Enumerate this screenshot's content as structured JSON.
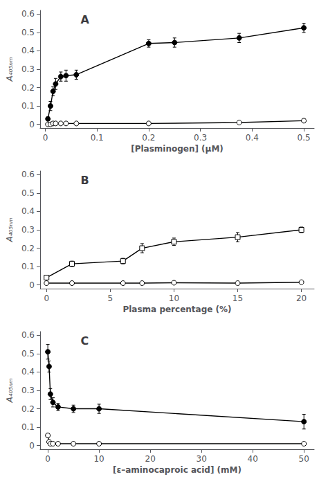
{
  "chart_data": [
    {
      "type": "line",
      "title": "A",
      "xlabel": "[Plasminogen] (μM)",
      "ylabel": "A₄₀₅ₙₘ",
      "xlim": [
        -0.01,
        0.52
      ],
      "ylim": [
        -0.02,
        0.62
      ],
      "xticks": [
        0,
        0.1,
        0.2,
        0.3,
        0.4,
        0.5
      ],
      "yticks": [
        0,
        0.1,
        0.2,
        0.3,
        0.4,
        0.5,
        0.6
      ],
      "grid": false,
      "series": [
        {
          "marker": "filled_circle",
          "color": "#000000",
          "x": [
            0.005,
            0.01,
            0.015,
            0.02,
            0.03,
            0.04,
            0.06,
            0.2,
            0.25,
            0.375,
            0.5
          ],
          "values": [
            0.03,
            0.1,
            0.18,
            0.22,
            0.26,
            0.265,
            0.27,
            0.44,
            0.445,
            0.47,
            0.525
          ],
          "yerr": [
            0.01,
            0.025,
            0.025,
            0.03,
            0.025,
            0.03,
            0.025,
            0.02,
            0.025,
            0.025,
            0.025
          ]
        },
        {
          "marker": "open_circle",
          "color": "#000000",
          "x": [
            0.005,
            0.01,
            0.015,
            0.02,
            0.03,
            0.04,
            0.06,
            0.2,
            0.375,
            0.5
          ],
          "values": [
            0.0,
            0.0,
            0.005,
            0.005,
            0.005,
            0.005,
            0.005,
            0.005,
            0.01,
            0.02
          ],
          "yerr": [
            0.005,
            0.005,
            0.005,
            0.005,
            0.005,
            0.005,
            0.005,
            0.005,
            0.005,
            0.01
          ]
        }
      ]
    },
    {
      "type": "line",
      "title": "B",
      "xlabel": "Plasma percentage (%)",
      "ylabel": "A₄₀₅ₙₘ",
      "xlim": [
        -0.5,
        21
      ],
      "ylim": [
        -0.02,
        0.62
      ],
      "xticks": [
        0,
        5,
        10,
        15,
        20
      ],
      "yticks": [
        0,
        0.1,
        0.2,
        0.3,
        0.4,
        0.5,
        0.6
      ],
      "grid": false,
      "series": [
        {
          "marker": "open_square",
          "color": "#000000",
          "x": [
            0.0,
            2.0,
            6.0,
            7.5,
            10.0,
            15.0,
            20.0
          ],
          "values": [
            0.04,
            0.115,
            0.13,
            0.2,
            0.235,
            0.26,
            0.3
          ],
          "yerr": [
            0.01,
            0.015,
            0.015,
            0.025,
            0.02,
            0.025,
            0.015
          ]
        },
        {
          "marker": "open_circle",
          "color": "#000000",
          "x": [
            0.0,
            2.0,
            6.0,
            7.5,
            10.0,
            15.0,
            20.0
          ],
          "values": [
            0.01,
            0.01,
            0.01,
            0.01,
            0.012,
            0.01,
            0.015
          ],
          "yerr": [
            0.005,
            0.005,
            0.005,
            0.005,
            0.005,
            0.005,
            0.005
          ]
        }
      ]
    },
    {
      "type": "line",
      "title": "C",
      "xlabel": "[ε–aminocaproic acid] (mM)",
      "ylabel": "A₄₀₅ₙₘ",
      "xlim": [
        -1.5,
        52
      ],
      "ylim": [
        -0.02,
        0.62
      ],
      "xticks": [
        0,
        10,
        20,
        30,
        40,
        50
      ],
      "yticks": [
        0,
        0.1,
        0.2,
        0.3,
        0.4,
        0.5,
        0.6
      ],
      "grid": false,
      "series": [
        {
          "marker": "filled_circle",
          "color": "#000000",
          "x": [
            0.0,
            0.25,
            0.5,
            1.0,
            2.0,
            5.0,
            10.0,
            50.0
          ],
          "values": [
            0.51,
            0.43,
            0.28,
            0.235,
            0.21,
            0.2,
            0.2,
            0.13
          ],
          "yerr": [
            0.04,
            0.03,
            0.03,
            0.025,
            0.02,
            0.02,
            0.025,
            0.04
          ]
        },
        {
          "marker": "open_circle",
          "color": "#000000",
          "x": [
            0.0,
            0.25,
            0.5,
            1.0,
            2.0,
            5.0,
            10.0,
            50.0
          ],
          "values": [
            0.055,
            0.02,
            0.01,
            0.01,
            0.01,
            0.01,
            0.01,
            0.01
          ],
          "yerr": [
            0.01,
            0.005,
            0.005,
            0.005,
            0.005,
            0.005,
            0.005,
            0.005
          ]
        }
      ]
    }
  ]
}
